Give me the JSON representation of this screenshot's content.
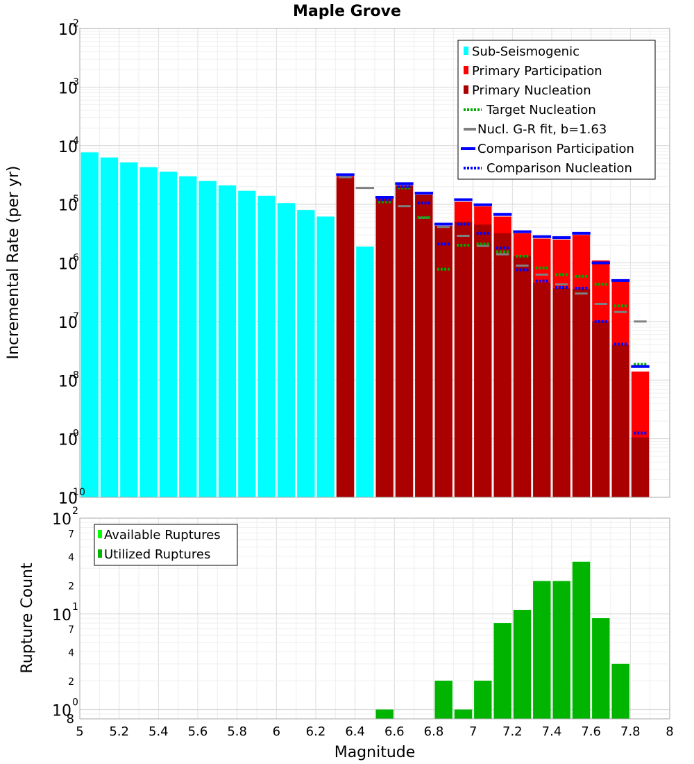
{
  "chart_data": [
    {
      "type": "bar",
      "title": "Maple Grove",
      "xlabel": "",
      "ylabel": "Incremental Rate (per yr)",
      "yscale": "log",
      "xlim": [
        5,
        8
      ],
      "ylim": [
        1e-10,
        0.01
      ],
      "bin_width": 0.1,
      "legend_position": "top-right",
      "legend": [
        "Sub-Seismogenic",
        "Primary Participation",
        "Primary Nucleation",
        "Target Nucleation",
        "Nucl. G-R fit, b=1.63",
        "Comparison Participation",
        "Comparison Nucleation"
      ],
      "y_decade_labels": [
        {
          "base": "10",
          "exp": "-2"
        },
        {
          "base": "10",
          "exp": "-3"
        },
        {
          "base": "10",
          "exp": "-4"
        },
        {
          "base": "10",
          "exp": "-5"
        },
        {
          "base": "10",
          "exp": "-6"
        },
        {
          "base": "10",
          "exp": "-7"
        },
        {
          "base": "10",
          "exp": "-8"
        },
        {
          "base": "10",
          "exp": "-9"
        },
        {
          "base": "10",
          "exp": "-10"
        }
      ],
      "colors": {
        "sub": "#00ffff",
        "participation": "#ff0000",
        "nucleation": "#aa0000",
        "target": "#00aa00",
        "gr_fit": "#808080",
        "comparison": "#0000ff"
      },
      "sub_seismogenic": {
        "x": [
          5.05,
          5.15,
          5.25,
          5.35,
          5.45,
          5.55,
          5.65,
          5.75,
          5.85,
          5.95,
          6.05,
          6.15,
          6.25,
          6.45
        ],
        "values": [
          7.7e-05,
          6.3e-05,
          5.2e-05,
          4.3e-05,
          3.6e-05,
          3e-05,
          2.5e-05,
          2.1e-05,
          1.7e-05,
          1.4e-05,
          1.05e-05,
          8e-06,
          6.2e-06,
          1.9e-06
        ]
      },
      "primary": {
        "x": [
          6.35,
          6.55,
          6.65,
          6.75,
          6.85,
          6.95,
          7.05,
          7.15,
          7.25,
          7.35,
          7.45,
          7.55,
          7.65,
          7.75,
          7.85
        ],
        "participation": [
          3e-05,
          1.25e-05,
          2.1e-05,
          1.45e-05,
          4.3e-06,
          1.1e-05,
          9.2e-06,
          6.2e-06,
          3.2e-06,
          2.6e-06,
          2.5e-06,
          3e-06,
          1.1e-06,
          4.8e-07,
          1.4e-08
        ],
        "nucleation": [
          2.8e-05,
          1.25e-05,
          2.1e-05,
          1.45e-05,
          4.3e-06,
          5e-06,
          4.5e-06,
          3.2e-06,
          1.3e-06,
          4.6e-07,
          3.7e-07,
          3.6e-07,
          1e-07,
          4e-08,
          1.05e-09
        ],
        "comparison_participation": [
          3.2e-05,
          1.32e-05,
          2.25e-05,
          1.55e-05,
          4.6e-06,
          1.2e-05,
          9.8e-06,
          6.7e-06,
          3.4e-06,
          2.8e-06,
          2.7e-06,
          3.2e-06,
          1e-06,
          5e-07,
          1.7e-08
        ],
        "comparison_nucleation": [
          null,
          1.2e-05,
          2e-05,
          1.05e-05,
          2.1e-06,
          4.6e-06,
          3.2e-06,
          1.8e-06,
          7.6e-07,
          4.9e-07,
          3.8e-07,
          3.7e-07,
          1e-07,
          4.1e-08,
          1.25e-09
        ],
        "target_nucleation": [
          null,
          1.1e-05,
          1.9e-05,
          6e-06,
          7.8e-07,
          2e-06,
          2.1e-06,
          1.55e-06,
          1.3e-06,
          8.2e-07,
          6.3e-07,
          5.9e-07,
          4.3e-07,
          1.85e-07,
          1.85e-08
        ],
        "gr_fit": [
          2.9e-05,
          1.33e-05,
          9.3e-06,
          5.9e-06,
          4.1e-06,
          2.9e-06,
          1.95e-06,
          1.4e-06,
          9e-07,
          6.3e-07,
          4.3e-07,
          3e-07,
          2e-07,
          1.45e-07,
          1e-07
        ]
      },
      "gr_fit_extra": {
        "x": [
          6.45
        ],
        "values": [
          1.9e-05
        ]
      }
    },
    {
      "type": "bar",
      "title": "",
      "xlabel": "Magnitude",
      "ylabel": "Rupture Count",
      "yscale": "log",
      "xlim": [
        5,
        8
      ],
      "ylim": [
        0.8,
        100
      ],
      "bin_width": 0.1,
      "legend_position": "top-left",
      "legend": [
        "Available Ruptures",
        "Utilized Ruptures"
      ],
      "colors": {
        "available": "#00ff00",
        "utilized": "#00b400"
      },
      "x_tick_labels": [
        "5",
        "5.2",
        "5.4",
        "5.6",
        "5.8",
        "6",
        "6.2",
        "6.4",
        "6.6",
        "6.8",
        "7",
        "7.2",
        "7.4",
        "7.6",
        "7.8",
        "8"
      ],
      "y_decade_labels": [
        {
          "base": "10",
          "exp": "2"
        },
        {
          "base": "10",
          "exp": "1"
        },
        {
          "base": "10",
          "exp": "0"
        }
      ],
      "y_minor_labels": [
        {
          "label": "7",
          "value": 70
        },
        {
          "label": "4",
          "value": 40
        },
        {
          "label": "2",
          "value": 20
        },
        {
          "label": "7",
          "value": 7
        },
        {
          "label": "4",
          "value": 4
        },
        {
          "label": "2",
          "value": 2
        },
        {
          "label": "8",
          "value": 0.8
        }
      ],
      "x": [
        6.55,
        6.85,
        6.95,
        7.05,
        7.15,
        7.25,
        7.35,
        7.45,
        7.55,
        7.65,
        7.75
      ],
      "utilized": [
        1,
        2,
        1,
        2,
        8,
        11,
        22,
        22,
        35,
        9,
        3
      ],
      "available": [
        1,
        2,
        1,
        2,
        8,
        11,
        22,
        22,
        35,
        9,
        3
      ]
    }
  ]
}
